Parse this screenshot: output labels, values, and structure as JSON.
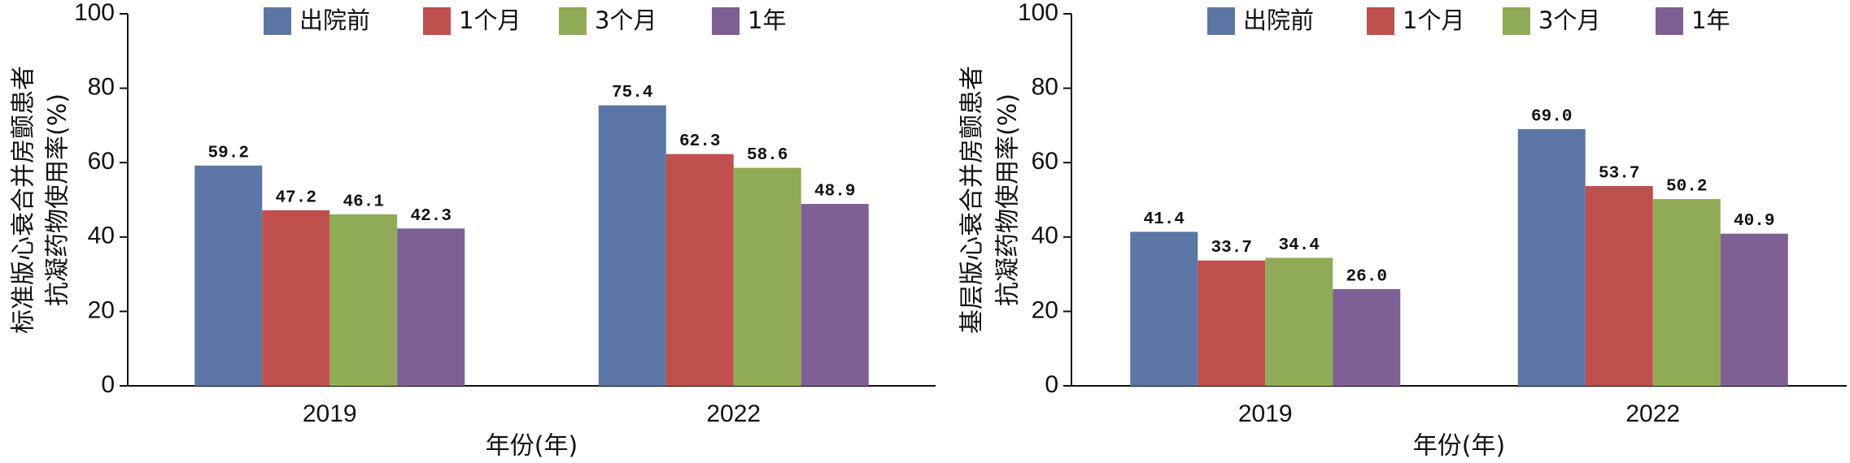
{
  "chart_data": [
    {
      "type": "bar",
      "y_label_lines": [
        "标准版心衰合并房颤患者",
        "抗凝药物使用率(%)"
      ],
      "x_label": "年份(年)",
      "categories": [
        "2019",
        "2022"
      ],
      "ylim": [
        0,
        100
      ],
      "yticks": [
        0,
        20,
        40,
        60,
        80,
        100
      ],
      "series": [
        {
          "name": "出院前",
          "color": "#5b76a5",
          "values": [
            59.2,
            75.4
          ],
          "value_labels": [
            "59.2",
            "75.4"
          ]
        },
        {
          "name": "1个月",
          "color": "#c0504d",
          "values": [
            47.2,
            62.3
          ],
          "value_labels": [
            "47.2",
            "62.3"
          ]
        },
        {
          "name": "3个月",
          "color": "#8fab55",
          "values": [
            46.1,
            58.6
          ],
          "value_labels": [
            "46.1",
            "58.6"
          ]
        },
        {
          "name": "1年",
          "color": "#7f6095",
          "values": [
            42.3,
            48.9
          ],
          "value_labels": [
            "42.3",
            "48.9"
          ]
        }
      ]
    },
    {
      "type": "bar",
      "y_label_lines": [
        "基层版心衰合并房颤患者",
        "抗凝药物使用率(%)"
      ],
      "x_label": "年份(年)",
      "categories": [
        "2019",
        "2022"
      ],
      "ylim": [
        0,
        100
      ],
      "yticks": [
        0,
        20,
        40,
        60,
        80,
        100
      ],
      "series": [
        {
          "name": "出院前",
          "color": "#5b76a5",
          "values": [
            41.4,
            69.0
          ],
          "value_labels": [
            "41.4",
            "69.0"
          ]
        },
        {
          "name": "1个月",
          "color": "#c0504d",
          "values": [
            33.7,
            53.7
          ],
          "value_labels": [
            "33.7",
            "53.7"
          ]
        },
        {
          "name": "3个月",
          "color": "#8fab55",
          "values": [
            34.4,
            50.2
          ],
          "value_labels": [
            "34.4",
            "50.2"
          ]
        },
        {
          "name": "1年",
          "color": "#7f6095",
          "values": [
            26.0,
            40.9
          ],
          "value_labels": [
            "26.0",
            "40.9"
          ]
        }
      ]
    }
  ]
}
